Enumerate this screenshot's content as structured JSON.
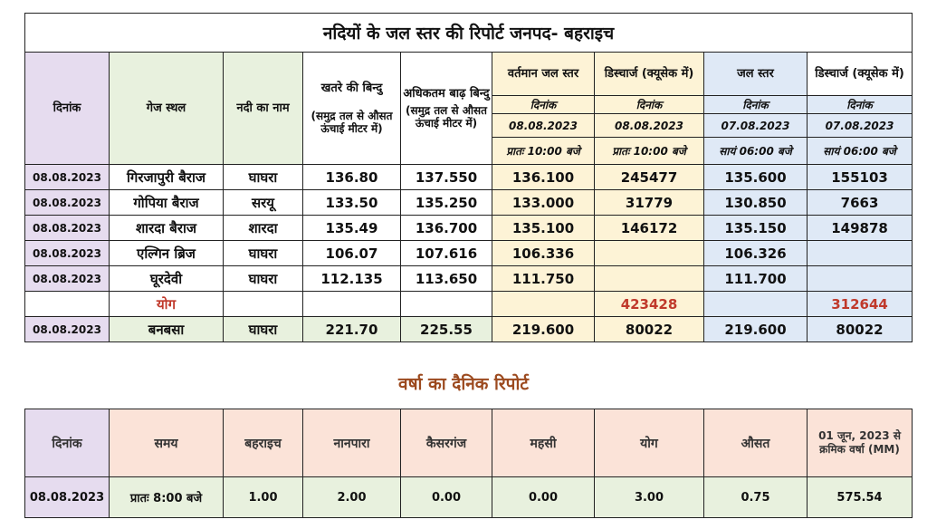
{
  "level_report": {
    "title": "नदियों के जल स्तर की रिपोर्ट  जनपद- बहराइच",
    "headers": {
      "date": "दिनांक",
      "gauge_site": "गेज स्थल",
      "river_name": "नदी का नाम",
      "danger_point": "खतरे की बिन्दु",
      "danger_point_note": "(समुद्र तल से औसत ऊंचाई मीटर में)",
      "max_flood_point": "अधिकतम बाढ़ बिन्दु",
      "max_flood_point_note": "(समुद्र तल से औसत ऊंचाई मीटर में)",
      "current_level": "वर्तमान जल  स्तर",
      "discharge_current": "डिस्चार्ज (क्यूसेक में)",
      "water_level": "जल  स्तर",
      "discharge_prev": "डिस्चार्ज (क्यूसेक में)",
      "date_sub": "दिनांक",
      "current_date": "08.08.2023",
      "prev_date": "07.08.2023",
      "morning_time": "प्रातः 10:00 बजे",
      "evening_time": "सायं 06:00 बजे"
    },
    "rows": [
      {
        "date": "08.08.2023",
        "site": "गिरजापुरी बैराज",
        "river": "घाघरा",
        "danger": "136.80",
        "max_flood": "137.550",
        "current_level": "136.100",
        "current_discharge": "245477",
        "prev_level": "135.600",
        "prev_discharge": "155103"
      },
      {
        "date": "08.08.2023",
        "site": "गोपिया बैराज",
        "river": "सरयू",
        "danger": "133.50",
        "max_flood": "135.250",
        "current_level": "133.000",
        "current_discharge": "31779",
        "prev_level": "130.850",
        "prev_discharge": "7663"
      },
      {
        "date": "08.08.2023",
        "site": "शारदा बैराज",
        "river": "शारदा",
        "danger": "135.49",
        "max_flood": "136.700",
        "current_level": "135.100",
        "current_discharge": "146172",
        "prev_level": "135.150",
        "prev_discharge": "149878"
      },
      {
        "date": "08.08.2023",
        "site": "एल्गिन ब्रिज",
        "river": "घाघरा",
        "danger": "106.07",
        "max_flood": "107.616",
        "current_level": "106.336",
        "current_discharge": "",
        "prev_level": "106.326",
        "prev_discharge": ""
      },
      {
        "date": "08.08.2023",
        "site": "घूरदेवी",
        "river": "घाघरा",
        "danger": "112.135",
        "max_flood": "113.650",
        "current_level": "111.750",
        "current_discharge": "",
        "prev_level": "111.700",
        "prev_discharge": ""
      }
    ],
    "total": {
      "label": "योग",
      "current_discharge": "423428",
      "prev_discharge": "312644"
    },
    "last_row": {
      "date": "08.08.2023",
      "site": "बनबसा",
      "river": "घाघरा",
      "danger": "221.70",
      "max_flood": "225.55",
      "current_level": "219.600",
      "current_discharge": "80022",
      "prev_level": "219.600",
      "prev_discharge": "80022"
    }
  },
  "rain_report": {
    "title": "वर्षा का दैनिक रिपोर्ट",
    "headers": [
      "दिनांक",
      "समय",
      "बहराइच",
      "नानपारा",
      "कैसरगंज",
      "महसी",
      "योग",
      "औसत",
      "01 जून, 2023 से क्रमिक वर्षा (MM)"
    ],
    "row": [
      "08.08.2023",
      "प्रातः 8:00 बजे",
      "1.00",
      "2.00",
      "0.00",
      "0.00",
      "3.00",
      "0.75",
      "575.54"
    ]
  },
  "colors": {
    "lavender": "#e6dcef",
    "green": "#e8f1de",
    "yellow": "#fdf3d6",
    "blue": "#dfe9f6",
    "peach": "#fbe3d8",
    "total_red": "#c0392b",
    "rain_title": "#9c4a1f"
  }
}
